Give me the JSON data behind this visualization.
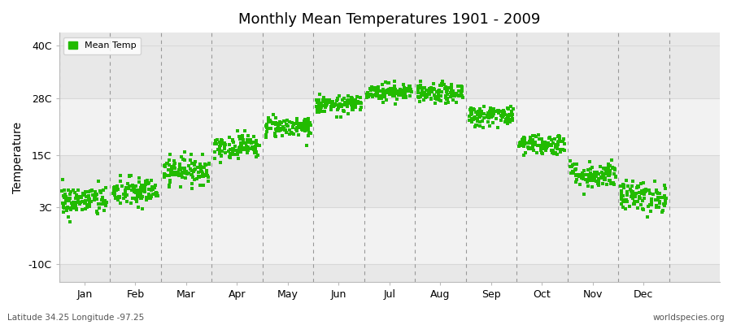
{
  "title": "Monthly Mean Temperatures 1901 - 2009",
  "ylabel": "Temperature",
  "yticks": [
    -10,
    3,
    15,
    28,
    40
  ],
  "ytick_labels": [
    "-10C",
    "3C",
    "15C",
    "28C",
    "40C"
  ],
  "ylim": [
    -14,
    43
  ],
  "xlim": [
    -0.5,
    12.5
  ],
  "months": [
    "Jan",
    "Feb",
    "Mar",
    "Apr",
    "May",
    "Jun",
    "Jul",
    "Aug",
    "Sep",
    "Oct",
    "Nov",
    "Dec"
  ],
  "month_centers": [
    0,
    1,
    2,
    3,
    4,
    5,
    6,
    7,
    8,
    9,
    10,
    11
  ],
  "dot_color": "#22bb00",
  "bg_color": "#eeeeee",
  "fig_color": "#ffffff",
  "legend_label": "Mean Temp",
  "bottom_left": "Latitude 34.25 Longitude -97.25",
  "bottom_right": "worldspecies.org",
  "mean_temps": {
    "Jan": {
      "mean": 4.5,
      "spread": 3.2
    },
    "Feb": {
      "mean": 6.5,
      "spread": 3.2
    },
    "Mar": {
      "mean": 11.5,
      "spread": 2.8
    },
    "Apr": {
      "mean": 17.0,
      "spread": 2.5
    },
    "May": {
      "mean": 21.5,
      "spread": 2.2
    },
    "Jun": {
      "mean": 26.5,
      "spread": 1.8
    },
    "Jul": {
      "mean": 29.5,
      "spread": 1.8
    },
    "Aug": {
      "mean": 29.0,
      "spread": 2.0
    },
    "Sep": {
      "mean": 24.0,
      "spread": 2.2
    },
    "Oct": {
      "mean": 17.5,
      "spread": 2.2
    },
    "Nov": {
      "mean": 10.5,
      "spread": 2.8
    },
    "Dec": {
      "mean": 5.5,
      "spread": 3.2
    }
  },
  "n_points": 109,
  "dot_size": 12,
  "band_colors": [
    "#f0f0f0",
    "#e4e4e4"
  ],
  "dashed_line_color": "#999999",
  "grid_line_color": "#d8d8d8",
  "spine_color": "#bbbbbb"
}
